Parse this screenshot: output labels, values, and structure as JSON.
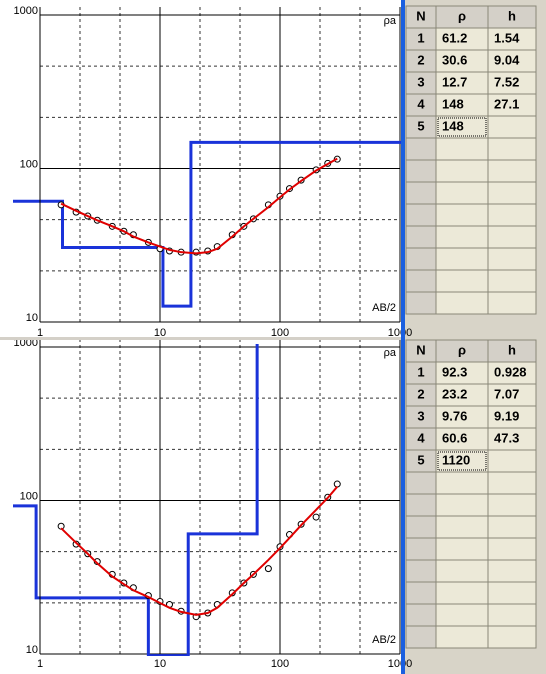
{
  "chart_data": [
    {
      "type": "line",
      "ylabel": "ρa",
      "xlabel": "AB/2",
      "x": [
        1.5,
        2,
        2.5,
        3,
        4,
        5,
        6,
        8,
        10,
        12,
        15,
        20,
        25,
        30,
        40,
        50,
        60,
        80,
        100,
        120,
        150,
        200,
        250,
        300
      ],
      "series": [
        {
          "color": "#000000",
          "marker": "circle",
          "values": [
            58,
            52,
            49,
            46,
            42,
            39,
            37,
            33,
            30,
            29,
            28.5,
            28.5,
            29,
            31,
            37,
            42,
            47,
            58,
            66,
            74,
            84,
            98,
            108,
            115
          ]
        },
        {
          "color": "#e00000",
          "values": [
            59,
            53,
            49,
            46,
            42,
            39,
            36,
            33,
            31,
            29.5,
            28.5,
            28,
            28.5,
            30,
            36,
            42,
            47,
            56,
            65,
            73,
            83,
            97,
            107,
            116
          ]
        }
      ],
      "model_color": "#1a33d9",
      "xlim": [
        1,
        1000
      ],
      "ylim": [
        10,
        1000
      ],
      "xticks": [
        1,
        10,
        100,
        1000
      ],
      "yticks": [
        10,
        100,
        1000
      ],
      "log_x": true,
      "log_y": true,
      "grid": true
    },
    {
      "type": "line",
      "ylabel": "ρa",
      "xlabel": "AB/2",
      "x": [
        1.5,
        2,
        2.5,
        3,
        4,
        5,
        6,
        8,
        10,
        12,
        15,
        20,
        25,
        30,
        40,
        50,
        60,
        80,
        100,
        120,
        150,
        200,
        250,
        300
      ],
      "series": [
        {
          "color": "#000000",
          "marker": "circle",
          "values": [
            68,
            52,
            45,
            40,
            33,
            29,
            27,
            24,
            22,
            21,
            19,
            17.5,
            18.5,
            21,
            25,
            29,
            33,
            36,
            50,
            60,
            70,
            78,
            105,
            128
          ]
        },
        {
          "color": "#e00000",
          "values": [
            66,
            53,
            45,
            39,
            32,
            28.5,
            26,
            23.5,
            21.5,
            20,
            18.8,
            18,
            18.5,
            20,
            24.5,
            29,
            33,
            41,
            49,
            57,
            69,
            87,
            104,
            123
          ]
        }
      ],
      "model_color": "#1a33d9",
      "xlim": [
        1,
        1000
      ],
      "ylim": [
        10,
        1000
      ],
      "xticks": [
        1,
        10,
        100,
        1000
      ],
      "yticks": [
        10,
        100,
        1000
      ],
      "log_x": true,
      "log_y": true,
      "grid": true
    }
  ],
  "tables": [
    {
      "columns": [
        "N",
        "ρ",
        "h"
      ],
      "rows": [
        [
          1,
          61.2,
          1.54
        ],
        [
          2,
          30.6,
          9.04
        ],
        [
          3,
          12.7,
          7.52
        ],
        [
          4,
          148,
          27.1
        ],
        [
          5,
          148
        ]
      ]
    },
    {
      "columns": [
        "N",
        "ρ",
        "h"
      ],
      "rows": [
        [
          1,
          92.3,
          0.928
        ],
        [
          2,
          23.2,
          7.07
        ],
        [
          3,
          9.76,
          9.19
        ],
        [
          4,
          60.6,
          47.3
        ],
        [
          5,
          1120
        ]
      ]
    }
  ]
}
